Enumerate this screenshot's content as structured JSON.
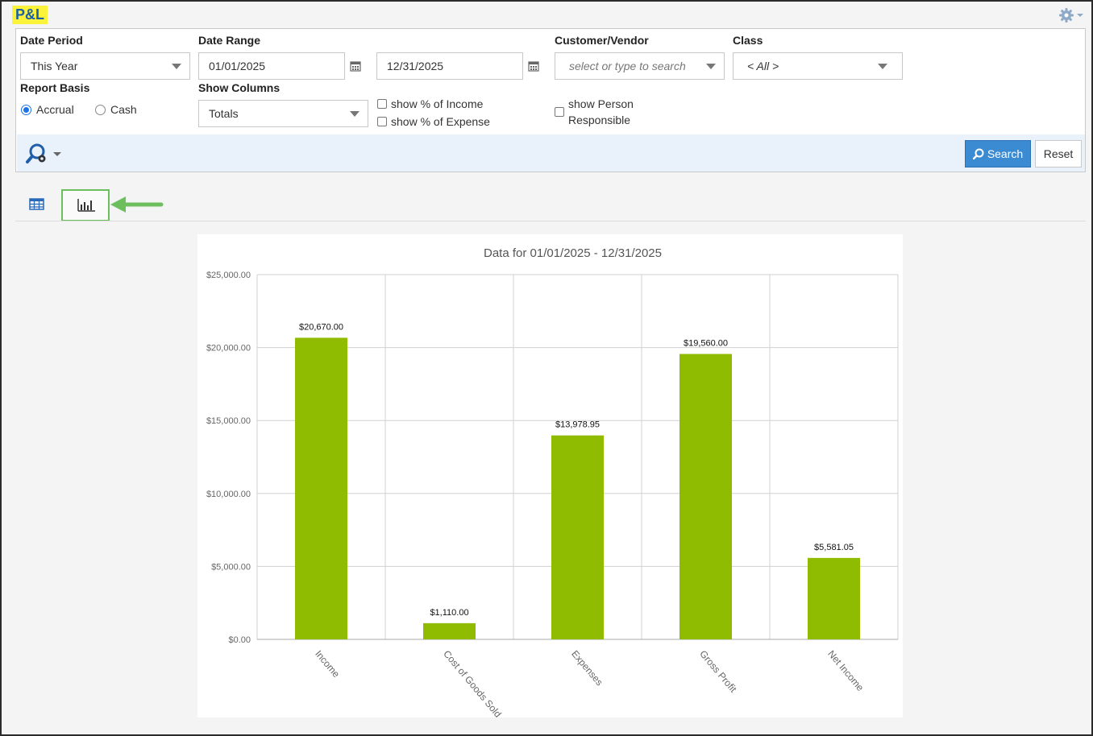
{
  "page": {
    "title": "P&L"
  },
  "filters": {
    "date_period": {
      "label": "Date Period",
      "value": "This Year"
    },
    "date_range": {
      "label": "Date Range",
      "from": "01/01/2025",
      "to": "12/31/2025"
    },
    "customer_vendor": {
      "label": "Customer/Vendor",
      "placeholder": "select or type to search"
    },
    "class": {
      "label": "Class",
      "value": "< All >"
    },
    "report_basis": {
      "label": "Report Basis",
      "options": [
        "Accrual",
        "Cash"
      ],
      "selected": "Accrual"
    },
    "show_columns": {
      "label": "Show Columns",
      "value": "Totals"
    },
    "checkboxes": {
      "pct_income": "show % of Income",
      "pct_expense": "show % of Expense",
      "person_line1": "show Person",
      "person_line2": "Responsible"
    }
  },
  "toolbar": {
    "search_label": "Search",
    "reset_label": "Reset"
  },
  "colors": {
    "bar": "#8fbc00",
    "accent": "#3b8bd3",
    "highlight_box": "#6cbf5c",
    "title_bg": "#fbf33a"
  },
  "icons": {
    "settings": "gear-icon",
    "search_options": "search-gear-icon",
    "table_view": "table-icon",
    "chart_view": "bar-chart-icon",
    "pointer": "arrow-left-icon"
  },
  "chart_data": {
    "type": "bar",
    "title": "Data for 01/01/2025 - 12/31/2025",
    "categories": [
      "Income",
      "Cost of Goods Sold",
      "Expenses",
      "Gross Profit",
      "Net Income"
    ],
    "values": [
      20670.0,
      1110.0,
      13978.95,
      19560.0,
      5581.05
    ],
    "data_labels": [
      "$20,670.00",
      "$1,110.00",
      "$13,978.95",
      "$19,560.00",
      "$5,581.05"
    ],
    "ylim": [
      0,
      25000
    ],
    "yticks": [
      0,
      5000,
      10000,
      15000,
      20000,
      25000
    ],
    "ytick_labels": [
      "$0.00",
      "$5,000.00",
      "$10,000.00",
      "$15,000.00",
      "$20,000.00",
      "$25,000.00"
    ],
    "xlabel": "",
    "ylabel": "",
    "grid": true
  }
}
